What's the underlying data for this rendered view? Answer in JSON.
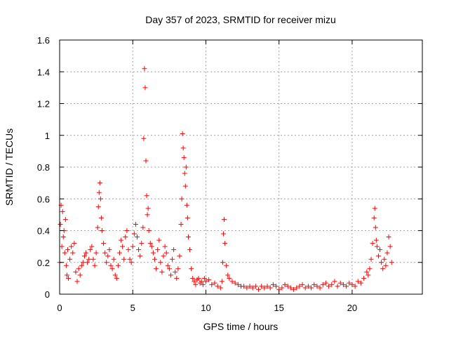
{
  "chart_data": {
    "type": "scatter",
    "title": "Day 357 of 2023, SRMTID for receiver mizu",
    "xlabel": "GPS time / hours",
    "ylabel": "SRMTID / TECUs",
    "xlim": [
      0,
      24.8
    ],
    "ylim": [
      0,
      1.6
    ],
    "xticks": [
      0,
      5,
      10,
      15,
      20
    ],
    "xtick_labels": [
      "0",
      "5",
      "10",
      "15",
      "20"
    ],
    "yticks": [
      0,
      0.2,
      0.4,
      0.6,
      0.8,
      1.0,
      1.2,
      1.4,
      1.6
    ],
    "ytick_labels": [
      "0",
      "0.2",
      "0.4",
      "0.6",
      "0.8",
      "1",
      "1.2",
      "1.4",
      "1.6"
    ],
    "grid": true,
    "marker": "+",
    "color": "#ff0000",
    "series": [
      {
        "name": "SRMTID",
        "x": [
          0.0,
          0.05,
          0.1,
          0.15,
          0.2,
          0.25,
          0.3,
          0.35,
          0.4,
          0.45,
          0.5,
          0.55,
          0.6,
          0.7,
          0.8,
          0.9,
          1.0,
          1.1,
          1.2,
          1.3,
          1.4,
          1.5,
          1.6,
          1.7,
          1.8,
          1.9,
          2.0,
          2.1,
          2.2,
          2.3,
          2.4,
          2.5,
          2.6,
          2.65,
          2.7,
          2.75,
          2.8,
          2.85,
          2.9,
          3.0,
          3.1,
          3.2,
          3.3,
          3.4,
          3.5,
          3.6,
          3.7,
          3.8,
          3.9,
          4.0,
          4.1,
          4.2,
          4.3,
          4.4,
          4.5,
          4.6,
          4.7,
          4.8,
          4.9,
          5.0,
          5.1,
          5.2,
          5.3,
          5.4,
          5.5,
          5.6,
          5.7,
          5.75,
          5.8,
          5.85,
          5.9,
          5.95,
          6.0,
          6.05,
          6.1,
          6.2,
          6.3,
          6.4,
          6.5,
          6.6,
          6.7,
          6.8,
          6.9,
          7.0,
          7.1,
          7.2,
          7.3,
          7.4,
          7.5,
          7.6,
          7.7,
          7.8,
          7.9,
          8.0,
          8.1,
          8.2,
          8.3,
          8.35,
          8.4,
          8.45,
          8.5,
          8.55,
          8.6,
          8.65,
          8.7,
          8.75,
          8.8,
          8.9,
          9.0,
          9.1,
          9.2,
          9.3,
          9.4,
          9.5,
          9.6,
          9.7,
          9.8,
          9.9,
          10.0,
          10.2,
          10.4,
          10.6,
          10.8,
          11.0,
          11.1,
          11.15,
          11.2,
          11.25,
          11.3,
          11.4,
          11.5,
          11.6,
          11.8,
          12.0,
          12.2,
          12.4,
          12.6,
          12.8,
          13.0,
          13.2,
          13.4,
          13.6,
          13.8,
          14.0,
          14.2,
          14.4,
          14.6,
          14.8,
          15.0,
          15.2,
          15.4,
          15.6,
          15.8,
          16.0,
          16.2,
          16.4,
          16.6,
          16.8,
          17.0,
          17.2,
          17.4,
          17.6,
          17.8,
          18.0,
          18.2,
          18.4,
          18.6,
          18.8,
          19.0,
          19.2,
          19.4,
          19.6,
          19.8,
          20.0,
          20.2,
          20.4,
          20.6,
          20.8,
          21.0,
          21.1,
          21.2,
          21.3,
          21.4,
          21.5,
          21.55,
          21.6,
          21.65,
          21.7,
          21.8,
          21.9,
          22.0,
          22.1,
          22.2,
          22.3,
          22.4,
          22.5,
          22.6,
          22.7
        ],
        "y": [
          0.2,
          0.44,
          0.56,
          0.3,
          0.52,
          0.36,
          0.4,
          0.26,
          0.47,
          0.18,
          0.12,
          0.28,
          0.1,
          0.22,
          0.3,
          0.26,
          0.32,
          0.14,
          0.08,
          0.16,
          0.12,
          0.18,
          0.2,
          0.24,
          0.26,
          0.2,
          0.22,
          0.28,
          0.3,
          0.22,
          0.18,
          0.26,
          0.42,
          0.55,
          0.64,
          0.7,
          0.6,
          0.48,
          0.4,
          0.32,
          0.26,
          0.2,
          0.24,
          0.28,
          0.18,
          0.16,
          0.22,
          0.12,
          0.1,
          0.18,
          0.26,
          0.34,
          0.3,
          0.22,
          0.36,
          0.4,
          0.28,
          0.22,
          0.2,
          0.3,
          0.38,
          0.44,
          0.36,
          0.28,
          0.24,
          0.32,
          0.42,
          0.98,
          1.42,
          1.3,
          0.84,
          0.62,
          0.5,
          0.54,
          0.4,
          0.32,
          0.3,
          0.26,
          0.22,
          0.16,
          0.28,
          0.34,
          0.2,
          0.14,
          0.24,
          0.3,
          0.26,
          0.18,
          0.16,
          0.12,
          0.22,
          0.28,
          0.14,
          0.1,
          0.16,
          0.24,
          0.44,
          0.6,
          1.01,
          0.92,
          0.86,
          0.76,
          0.68,
          0.8,
          0.56,
          0.48,
          0.36,
          0.28,
          0.16,
          0.1,
          0.08,
          0.06,
          0.09,
          0.1,
          0.07,
          0.08,
          0.06,
          0.1,
          0.08,
          0.09,
          0.06,
          0.07,
          0.05,
          0.04,
          0.08,
          0.2,
          0.38,
          0.47,
          0.32,
          0.18,
          0.12,
          0.1,
          0.08,
          0.07,
          0.06,
          0.05,
          0.05,
          0.04,
          0.05,
          0.04,
          0.05,
          0.03,
          0.05,
          0.04,
          0.05,
          0.04,
          0.06,
          0.05,
          0.03,
          0.04,
          0.06,
          0.05,
          0.04,
          0.03,
          0.04,
          0.05,
          0.06,
          0.04,
          0.05,
          0.04,
          0.06,
          0.05,
          0.04,
          0.06,
          0.07,
          0.05,
          0.06,
          0.08,
          0.05,
          0.07,
          0.06,
          0.05,
          0.07,
          0.06,
          0.05,
          0.08,
          0.07,
          0.1,
          0.14,
          0.12,
          0.16,
          0.22,
          0.32,
          0.48,
          0.54,
          0.42,
          0.34,
          0.3,
          0.24,
          0.28,
          0.2,
          0.16,
          0.22,
          0.18,
          0.26,
          0.36,
          0.3,
          0.2
        ]
      }
    ]
  }
}
